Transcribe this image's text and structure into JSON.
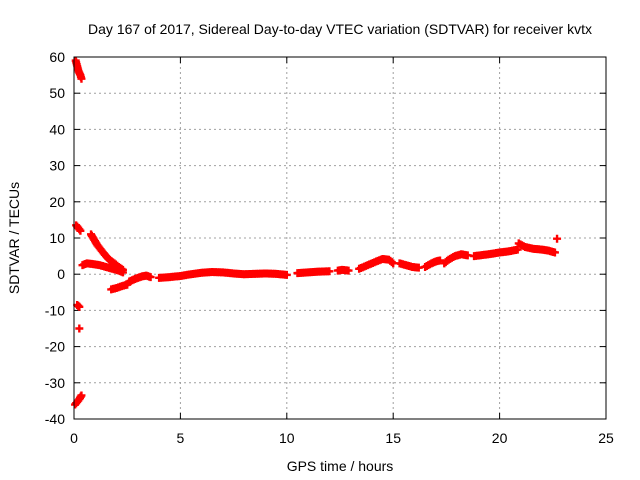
{
  "chart_data": {
    "type": "scatter",
    "title": "Day 167 of 2017, Sidereal Day-to-day VTEC variation (SDTVAR) for receiver kvtx",
    "xlabel": "GPS time / hours",
    "ylabel": "SDTVAR / TECUs",
    "xlim": [
      0,
      25
    ],
    "ylim": [
      -40,
      60
    ],
    "xticks": [
      0,
      5,
      10,
      15,
      20,
      25
    ],
    "yticks": [
      -40,
      -30,
      -20,
      -10,
      0,
      10,
      20,
      30,
      40,
      50,
      60
    ],
    "grid": true,
    "marker": "plus",
    "series": [
      {
        "name": "SDTVAR",
        "color": "#ff0000",
        "segments": [
          {
            "x": [
              0.08,
              0.15,
              0.22,
              0.3,
              0.35
            ],
            "y": [
              59,
              57.5,
              56,
              55,
              54
            ]
          },
          {
            "x": [
              0.1,
              0.2,
              0.3
            ],
            "y": [
              13.5,
              12.8,
              12.0
            ]
          },
          {
            "x": [
              0.15,
              0.25
            ],
            "y": [
              -8.5,
              -9.0
            ]
          },
          {
            "x": [
              0.25
            ],
            "y": [
              -15
            ]
          },
          {
            "x": [
              0.05,
              0.15,
              0.25,
              0.35
            ],
            "y": [
              -36,
              -35.3,
              -34.5,
              -33.5
            ]
          },
          {
            "x": [
              0.4,
              0.6,
              0.9,
              1.2,
              1.5,
              1.8,
              2.1,
              2.3
            ],
            "y": [
              2.5,
              3.0,
              2.8,
              2.5,
              2.0,
              1.5,
              1.0,
              0.5
            ]
          },
          {
            "x": [
              0.8,
              0.95,
              1.1,
              1.3,
              1.5,
              1.7,
              1.9,
              2.1,
              2.3
            ],
            "y": [
              11.0,
              9.5,
              8.0,
              6.5,
              5.0,
              3.8,
              3.0,
              2.0,
              1.2
            ]
          },
          {
            "x": [
              1.75,
              2.0,
              2.25,
              2.5
            ],
            "y": [
              -4.2,
              -3.8,
              -3.3,
              -2.9
            ]
          },
          {
            "x": [
              2.6,
              2.8,
              3.0,
              3.2,
              3.4,
              3.6
            ],
            "y": [
              -2.0,
              -1.5,
              -1.0,
              -0.6,
              -0.4,
              -0.8
            ]
          },
          {
            "x": [
              4.0,
              4.5,
              5.0,
              5.5,
              6.0,
              6.5,
              7.0,
              7.5,
              8.0,
              8.5,
              9.0,
              9.5,
              10.0
            ],
            "y": [
              -1.0,
              -0.8,
              -0.5,
              0.0,
              0.4,
              0.6,
              0.5,
              0.2,
              0.0,
              0.1,
              0.2,
              0.1,
              -0.2
            ]
          },
          {
            "x": [
              10.5,
              11.0,
              11.5,
              12.0
            ],
            "y": [
              0.3,
              0.5,
              0.7,
              0.8
            ]
          },
          {
            "x": [
              12.4,
              12.6,
              12.9
            ],
            "y": [
              1.0,
              1.2,
              1.0
            ]
          },
          {
            "x": [
              13.4,
              13.8,
              14.2,
              14.5,
              14.8,
              15.0
            ],
            "y": [
              1.5,
              2.5,
              3.5,
              4.2,
              4.0,
              3.0
            ]
          },
          {
            "x": [
              15.3,
              15.6,
              15.9,
              16.2
            ],
            "y": [
              3.0,
              2.5,
              2.0,
              1.8
            ]
          },
          {
            "x": [
              16.5,
              16.8,
              17.0,
              17.2
            ],
            "y": [
              2.0,
              3.0,
              3.5,
              3.8
            ]
          },
          {
            "x": [
              17.4,
              17.6,
              17.9,
              18.2,
              18.5
            ],
            "y": [
              3.0,
              4.0,
              5.0,
              5.5,
              5.2
            ]
          },
          {
            "x": [
              18.8,
              19.2,
              19.6,
              20.0,
              20.3,
              20.6,
              20.85
            ],
            "y": [
              5.0,
              5.3,
              5.6,
              6.0,
              6.2,
              6.5,
              6.8
            ]
          },
          {
            "x": [
              20.9,
              21.2,
              21.6,
              22.0,
              22.3,
              22.6
            ],
            "y": [
              8.5,
              7.5,
              7.0,
              6.8,
              6.5,
              6.0
            ]
          },
          {
            "x": [
              22.7
            ],
            "y": [
              9.8
            ]
          }
        ]
      }
    ]
  }
}
